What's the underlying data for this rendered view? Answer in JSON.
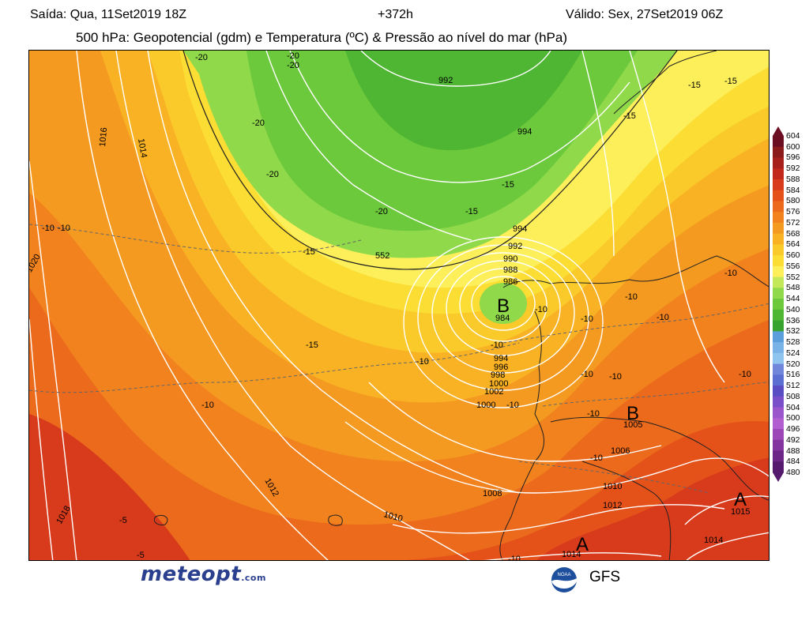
{
  "header": {
    "left": "Saída: Qua, 11Set2019 18Z",
    "mid": "+372h",
    "right": "Válido: Sex, 27Set2019 06Z",
    "subtitle": "500 hPa: Geopotencial (gdm) e Temperatura (ºC) & Pressão ao nível do mar (hPa)"
  },
  "colorbar": {
    "levels": [
      "604",
      "600",
      "596",
      "592",
      "588",
      "584",
      "580",
      "576",
      "572",
      "568",
      "564",
      "560",
      "556",
      "552",
      "548",
      "544",
      "540",
      "536",
      "532",
      "528",
      "524",
      "520",
      "516",
      "512",
      "508",
      "504",
      "500",
      "496",
      "492",
      "488",
      "484",
      "480"
    ],
    "colors": [
      "#6b0e22",
      "#8b1a1a",
      "#a8201c",
      "#c3281c",
      "#d83a1c",
      "#e4521a",
      "#ec6a1c",
      "#f1821e",
      "#f59a20",
      "#f8b224",
      "#fac92a",
      "#fbdd34",
      "#fcef5a",
      "#c3e85a",
      "#8fd94a",
      "#6cc93c",
      "#4fb633",
      "#38a22e",
      "#5b9edc",
      "#79b2e6",
      "#8fc4ee",
      "#6f86da",
      "#5b6ed2",
      "#5a4dc4",
      "#7a4ec8",
      "#9a55cc",
      "#b35ed0",
      "#9c46b8",
      "#84349e",
      "#6c2686",
      "#551a6e"
    ]
  },
  "map_labels": {
    "isobars": [
      "992",
      "994",
      "994",
      "992",
      "990",
      "988",
      "986",
      "984",
      "994",
      "996",
      "998",
      "1000",
      "1002",
      "1000",
      "1005",
      "1006",
      "1008",
      "1010",
      "1010",
      "1012",
      "1012",
      "1014",
      "1014",
      "1015",
      "1016",
      "1014",
      "1018",
      "1020",
      "1010"
    ],
    "temps": [
      "-20",
      "-20",
      "-20",
      "-20",
      "-20",
      "-20",
      "-15",
      "-15",
      "-15",
      "-15",
      "-15",
      "-15",
      "-15",
      "-10",
      "-10",
      "-10",
      "-10",
      "-10",
      "-10",
      "-10",
      "-10",
      "-10",
      "-10",
      "-10",
      "-10",
      "-10",
      "-10",
      "-10",
      "-5",
      "-5",
      "-10",
      "-10"
    ],
    "geopotential": [
      "552"
    ],
    "pressure_centers": [
      "B",
      "B",
      "A",
      "A"
    ]
  },
  "footer": {
    "logo_text": "meteopt",
    "logo_domain": ".com",
    "noaa_text": "NOAA",
    "gfs_label": "GFS"
  },
  "icons": {
    "noaa": "noaa-logo-icon",
    "brand": "meteopt-logo-icon"
  }
}
